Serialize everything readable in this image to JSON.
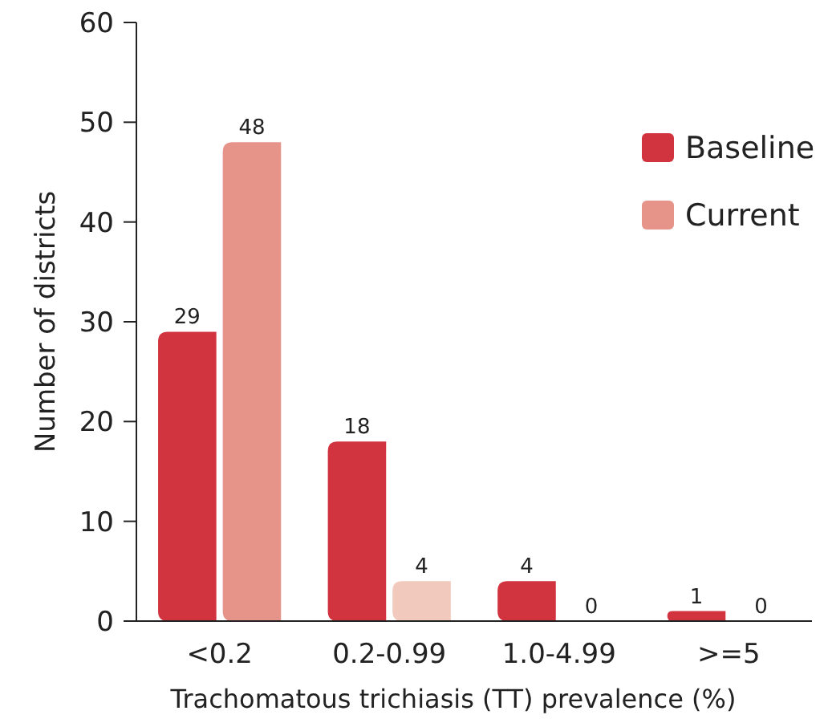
{
  "chart_data": {
    "type": "bar",
    "xlabel": "Trachomatous trichiasis (TT) prevalence (%)",
    "ylabel": "Number of districts",
    "categories": [
      "<0.2",
      "0.2-0.99",
      "1.0-4.99",
      ">=5"
    ],
    "series": [
      {
        "name": "Baseline",
        "color": "#d1343f",
        "values": [
          29,
          18,
          4,
          1
        ]
      },
      {
        "name": "Current",
        "color": "#e6948a",
        "colors": [
          "#e6948a",
          "#f2c9bd",
          "#e6948a",
          "#e6948a"
        ],
        "values": [
          48,
          4,
          0,
          0
        ]
      }
    ],
    "ylim": [
      0,
      60
    ],
    "yticks": [
      0,
      10,
      20,
      30,
      40,
      50,
      60
    ],
    "data_labels": true,
    "legend": "top right",
    "grid": false
  }
}
